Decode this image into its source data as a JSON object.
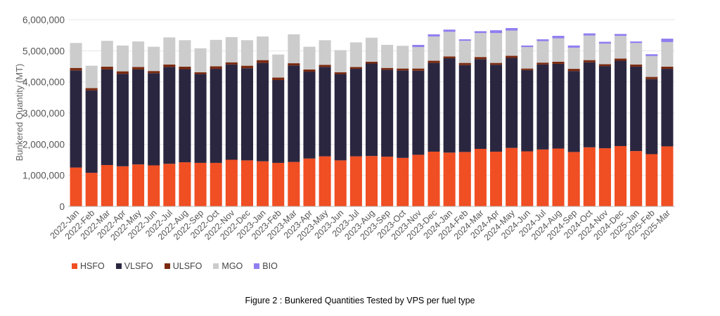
{
  "chart_data": {
    "type": "bar",
    "stacked": true,
    "title": "",
    "xlabel": "",
    "ylabel": "Bunkered Quantity (MT)",
    "ylim": [
      0,
      6000000
    ],
    "yticks": [
      "0",
      "1,000,000",
      "2,000,000",
      "3,000,000",
      "4,000,000",
      "5,000,000",
      "6,000,000"
    ],
    "grid": true,
    "legend_position": "bottom-left",
    "categories": [
      "2022-Jan",
      "2022-Feb",
      "2022-Mar",
      "2022-Apr",
      "2022-May",
      "2022-Jun",
      "2022-Jul",
      "2022-Aug",
      "2022-Sep",
      "2022-Oct",
      "2022-Nov",
      "2022-Dec",
      "2023-Jan",
      "2023-Feb",
      "2023-Mar",
      "2023-Apr",
      "2023-May",
      "2023-Jun",
      "2023-Jul",
      "2023-Aug",
      "2023-Sep",
      "2023-Oct",
      "2023-Nov",
      "2023-Dec",
      "2024-Jan",
      "2024-Feb",
      "2024-Mar",
      "2024-Apr",
      "2024-May",
      "2024-Jun",
      "2024-Jul",
      "2024-Aug",
      "2024-Sep",
      "2024-Oct",
      "2024-Nov",
      "2024-Dec",
      "2025-Jan",
      "2025-Feb",
      "2025-Mar"
    ],
    "series": [
      {
        "name": "HSFO",
        "color": "#f04e23",
        "values": [
          1250000,
          1080000,
          1330000,
          1290000,
          1350000,
          1320000,
          1370000,
          1420000,
          1400000,
          1400000,
          1500000,
          1480000,
          1450000,
          1400000,
          1430000,
          1540000,
          1610000,
          1480000,
          1610000,
          1620000,
          1600000,
          1560000,
          1660000,
          1760000,
          1730000,
          1750000,
          1850000,
          1760000,
          1880000,
          1770000,
          1830000,
          1860000,
          1750000,
          1900000,
          1870000,
          1940000,
          1780000,
          1680000,
          1930000
        ]
      },
      {
        "name": "VLSFO",
        "color": "#2b2640",
        "values": [
          3120000,
          2650000,
          3070000,
          2970000,
          3050000,
          2960000,
          3110000,
          2990000,
          2850000,
          3020000,
          3060000,
          2960000,
          3160000,
          2660000,
          3100000,
          2790000,
          2870000,
          2770000,
          2810000,
          2970000,
          2790000,
          2810000,
          2700000,
          2850000,
          3030000,
          2790000,
          2880000,
          2790000,
          2890000,
          2610000,
          2730000,
          2720000,
          2600000,
          2730000,
          2640000,
          2740000,
          2710000,
          2410000,
          2490000
        ]
      },
      {
        "name": "ULSFO",
        "color": "#7a2a10",
        "values": [
          80000,
          70000,
          90000,
          80000,
          80000,
          70000,
          80000,
          80000,
          60000,
          80000,
          70000,
          80000,
          90000,
          80000,
          70000,
          70000,
          70000,
          60000,
          60000,
          60000,
          60000,
          60000,
          70000,
          70000,
          60000,
          70000,
          70000,
          60000,
          70000,
          50000,
          60000,
          70000,
          70000,
          70000,
          60000,
          70000,
          70000,
          70000,
          70000
        ]
      },
      {
        "name": "MGO",
        "color": "#cccccc",
        "values": [
          800000,
          720000,
          830000,
          830000,
          820000,
          780000,
          870000,
          850000,
          770000,
          850000,
          810000,
          820000,
          760000,
          740000,
          930000,
          730000,
          790000,
          710000,
          790000,
          770000,
          740000,
          730000,
          690000,
          780000,
          790000,
          710000,
          770000,
          960000,
          810000,
          690000,
          690000,
          750000,
          680000,
          790000,
          660000,
          730000,
          690000,
          670000,
          790000
        ]
      },
      {
        "name": "BIO",
        "color": "#8f7ff0",
        "values": [
          0,
          0,
          0,
          0,
          0,
          0,
          0,
          0,
          0,
          0,
          0,
          0,
          0,
          0,
          0,
          0,
          0,
          0,
          0,
          0,
          0,
          0,
          70000,
          70000,
          70000,
          50000,
          60000,
          90000,
          80000,
          50000,
          60000,
          80000,
          70000,
          70000,
          60000,
          60000,
          50000,
          60000,
          110000
        ]
      }
    ]
  },
  "caption": "Figure 2 : Bunkered Quantities Tested by VPS per fuel type"
}
